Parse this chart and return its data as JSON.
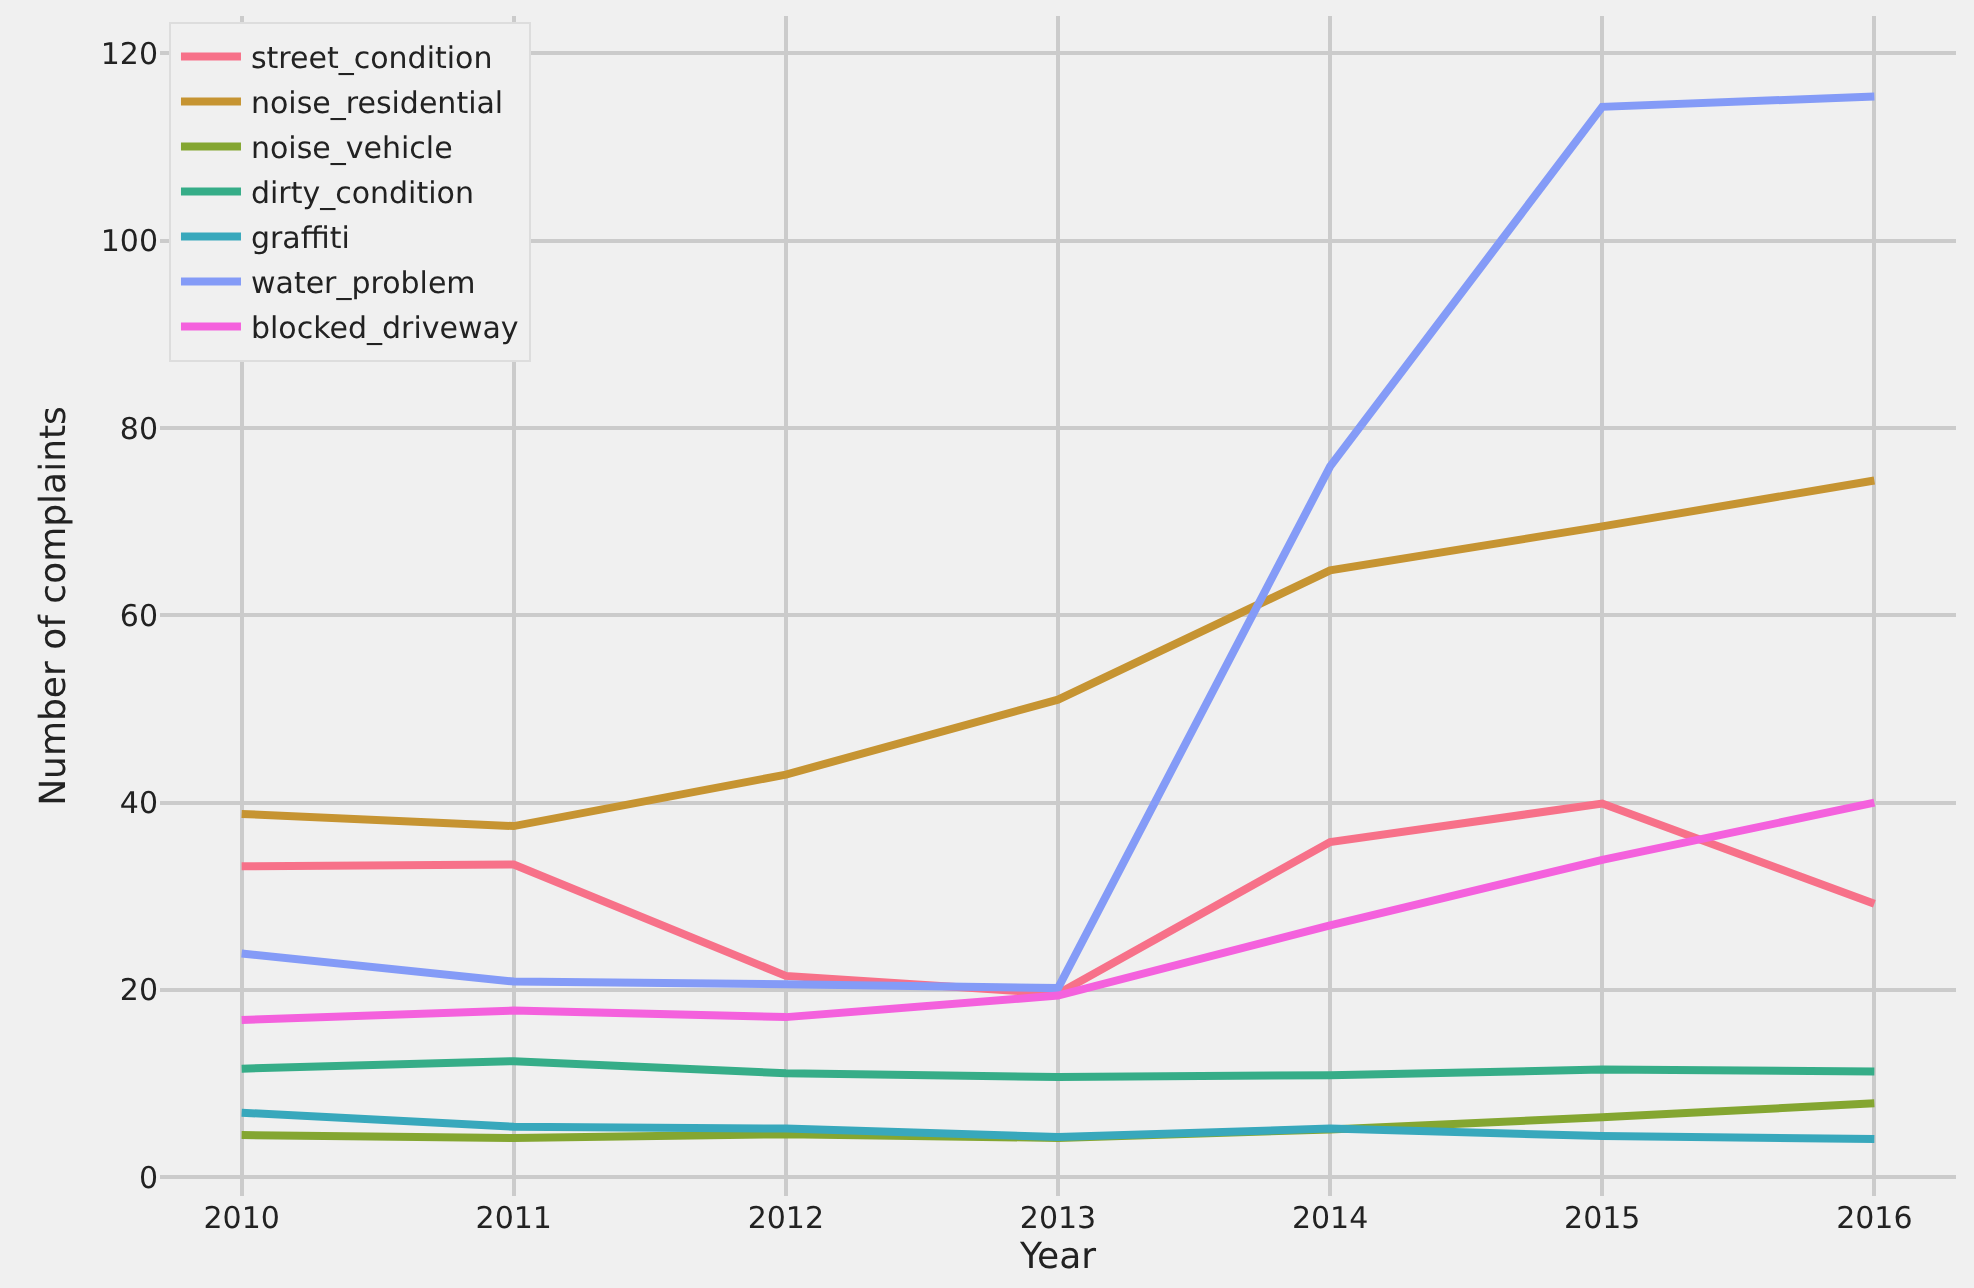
{
  "chart_data": {
    "type": "line",
    "xlabel": "Year",
    "ylabel": "Number of complaints",
    "x": [
      2010,
      2011,
      2012,
      2013,
      2014,
      2015,
      2016
    ],
    "series": [
      {
        "name": "street_condition",
        "color": "#f77189",
        "values": [
          33.2,
          33.4,
          21.5,
          19.6,
          35.8,
          39.9,
          29.2
        ]
      },
      {
        "name": "noise_residential",
        "color": "#c69432",
        "values": [
          38.8,
          37.5,
          43.0,
          51.0,
          64.8,
          69.5,
          74.4
        ]
      },
      {
        "name": "noise_vehicle",
        "color": "#84a631",
        "values": [
          4.5,
          4.2,
          4.6,
          4.2,
          5.1,
          6.4,
          7.9
        ]
      },
      {
        "name": "dirty_condition",
        "color": "#36ad88",
        "values": [
          11.6,
          12.4,
          11.1,
          10.7,
          10.9,
          11.5,
          11.3
        ]
      },
      {
        "name": "graffiti",
        "color": "#38a8bc",
        "values": [
          6.9,
          5.4,
          5.2,
          4.3,
          5.2,
          4.4,
          4.1
        ]
      },
      {
        "name": "water_problem",
        "color": "#849bf7",
        "values": [
          23.9,
          20.9,
          20.6,
          20.2,
          75.9,
          114.3,
          115.4
        ]
      },
      {
        "name": "blocked_driveway",
        "color": "#f461dd",
        "values": [
          16.8,
          17.8,
          17.1,
          19.4,
          26.9,
          33.9,
          40.0
        ]
      }
    ],
    "xlim": [
      2009.7,
      2016.3
    ],
    "xticks": [
      2010,
      2011,
      2012,
      2013,
      2014,
      2015,
      2016
    ],
    "ylim": [
      -2,
      124
    ],
    "yticks": [
      0,
      20,
      40,
      60,
      80,
      100,
      120
    ],
    "grid": true,
    "legend": "top left",
    "line_style": "solid",
    "marker": "none"
  }
}
